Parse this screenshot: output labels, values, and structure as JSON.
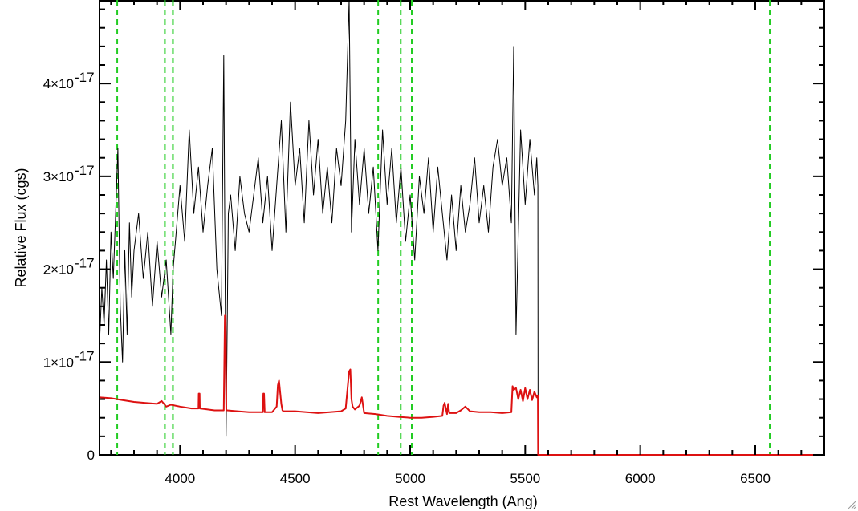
{
  "chart_data": {
    "type": "line",
    "title": "",
    "xlabel": "Rest Wavelength (Ang)",
    "ylabel": "Relative Flux (cgs)",
    "xlim": [
      3650,
      6800
    ],
    "ylim": [
      0,
      4.9
    ],
    "y_unit_exponent": -17,
    "x_ticks": [
      {
        "value": 4000,
        "label": "4000"
      },
      {
        "value": 4500,
        "label": "4500"
      },
      {
        "value": 5000,
        "label": "5000"
      },
      {
        "value": 5500,
        "label": "5500"
      },
      {
        "value": 6000,
        "label": "6000"
      },
      {
        "value": 6500,
        "label": "6500"
      }
    ],
    "y_ticks": [
      {
        "value": 0,
        "label": "0",
        "exp": ""
      },
      {
        "value": 1,
        "label": "1×10",
        "exp": "-17"
      },
      {
        "value": 2,
        "label": "2×10",
        "exp": "-17"
      },
      {
        "value": 3,
        "label": "3×10",
        "exp": "-17"
      },
      {
        "value": 4,
        "label": "4×10",
        "exp": "-17"
      }
    ],
    "grid": false,
    "line_markers": [
      3727,
      3934,
      3969,
      4861,
      4959,
      5007,
      6563
    ],
    "colors": {
      "spectrum": "#000000",
      "model": "#dd1111",
      "markers": "#22cc22"
    },
    "series": [
      {
        "name": "",
        "role": "spectrum",
        "x": [
          3650,
          3660,
          3670,
          3680,
          3690,
          3700,
          3710,
          3720,
          3730,
          3740,
          3750,
          3760,
          3770,
          3780,
          3790,
          3800,
          3820,
          3840,
          3860,
          3880,
          3900,
          3920,
          3940,
          3960,
          3970,
          3980,
          4000,
          4020,
          4040,
          4060,
          4080,
          4100,
          4120,
          4140,
          4160,
          4180,
          4190,
          4200,
          4210,
          4220,
          4240,
          4260,
          4280,
          4300,
          4320,
          4340,
          4360,
          4380,
          4400,
          4420,
          4440,
          4460,
          4480,
          4500,
          4520,
          4540,
          4560,
          4580,
          4600,
          4620,
          4640,
          4660,
          4680,
          4700,
          4720,
          4735,
          4745,
          4760,
          4780,
          4800,
          4820,
          4840,
          4860,
          4880,
          4900,
          4920,
          4940,
          4960,
          4980,
          5000,
          5020,
          5040,
          5060,
          5080,
          5100,
          5120,
          5140,
          5160,
          5180,
          5200,
          5220,
          5240,
          5260,
          5280,
          5300,
          5320,
          5340,
          5360,
          5380,
          5400,
          5420,
          5440,
          5450,
          5460,
          5480,
          5500,
          5520,
          5540,
          5550,
          5555,
          5556,
          5560,
          6800
        ],
        "y": [
          1.2,
          1.8,
          1.4,
          2.1,
          1.3,
          2.4,
          1.9,
          2.6,
          3.3,
          1.6,
          1.0,
          2.2,
          1.3,
          2.5,
          1.7,
          2.2,
          2.6,
          1.9,
          2.4,
          1.6,
          2.3,
          1.7,
          2.1,
          1.3,
          2.0,
          2.3,
          2.9,
          2.3,
          3.5,
          2.6,
          3.1,
          2.4,
          2.9,
          3.3,
          2.0,
          1.5,
          4.3,
          0.2,
          2.6,
          2.8,
          2.2,
          3.0,
          2.6,
          2.4,
          2.8,
          3.2,
          2.5,
          3.0,
          2.2,
          2.9,
          3.6,
          2.4,
          3.8,
          2.9,
          3.3,
          2.5,
          3.6,
          2.8,
          3.4,
          2.6,
          3.1,
          2.5,
          3.3,
          2.9,
          3.6,
          4.9,
          2.4,
          3.4,
          2.7,
          3.3,
          2.6,
          3.1,
          2.2,
          3.5,
          2.7,
          3.3,
          2.5,
          3.1,
          2.3,
          2.8,
          2.1,
          3.0,
          2.6,
          3.2,
          2.4,
          3.1,
          2.6,
          2.1,
          2.8,
          2.2,
          2.9,
          2.4,
          2.7,
          3.2,
          2.5,
          2.9,
          2.4,
          3.1,
          3.4,
          2.9,
          3.2,
          2.5,
          4.4,
          1.3,
          3.5,
          2.7,
          3.4,
          2.8,
          3.2,
          2.9,
          0.0,
          0.0,
          0.0
        ]
      },
      {
        "name": "",
        "role": "model",
        "x": [
          3650,
          3700,
          3750,
          3800,
          3850,
          3900,
          3920,
          3940,
          3960,
          4000,
          4050,
          4080,
          4081,
          4085,
          4086,
          4150,
          4190,
          4195,
          4198,
          4201,
          4205,
          4250,
          4300,
          4360,
          4362,
          4365,
          4368,
          4400,
          4420,
          4425,
          4430,
          4440,
          4445,
          4450,
          4500,
          4550,
          4600,
          4650,
          4700,
          4720,
          4735,
          4740,
          4745,
          4750,
          4760,
          4780,
          4790,
          4800,
          4850,
          4900,
          4950,
          5000,
          5050,
          5100,
          5140,
          5145,
          5150,
          5160,
          5165,
          5170,
          5200,
          5220,
          5240,
          5260,
          5300,
          5350,
          5400,
          5440,
          5445,
          5450,
          5460,
          5470,
          5480,
          5490,
          5500,
          5510,
          5520,
          5530,
          5540,
          5550,
          5555,
          5556,
          6800
        ],
        "y": [
          0.62,
          0.61,
          0.59,
          0.57,
          0.56,
          0.55,
          0.58,
          0.52,
          0.54,
          0.52,
          0.5,
          0.5,
          0.66,
          0.66,
          0.5,
          0.48,
          0.48,
          1.5,
          1.5,
          0.48,
          0.48,
          0.47,
          0.46,
          0.46,
          0.66,
          0.66,
          0.46,
          0.46,
          0.52,
          0.75,
          0.8,
          0.55,
          0.48,
          0.47,
          0.47,
          0.46,
          0.45,
          0.46,
          0.47,
          0.5,
          0.9,
          0.92,
          0.6,
          0.52,
          0.49,
          0.53,
          0.62,
          0.45,
          0.44,
          0.42,
          0.41,
          0.4,
          0.4,
          0.41,
          0.42,
          0.53,
          0.56,
          0.44,
          0.55,
          0.45,
          0.45,
          0.48,
          0.52,
          0.47,
          0.46,
          0.46,
          0.45,
          0.46,
          0.74,
          0.7,
          0.72,
          0.6,
          0.7,
          0.58,
          0.72,
          0.6,
          0.7,
          0.59,
          0.68,
          0.62,
          0.64,
          0.0,
          0.0
        ]
      }
    ]
  }
}
